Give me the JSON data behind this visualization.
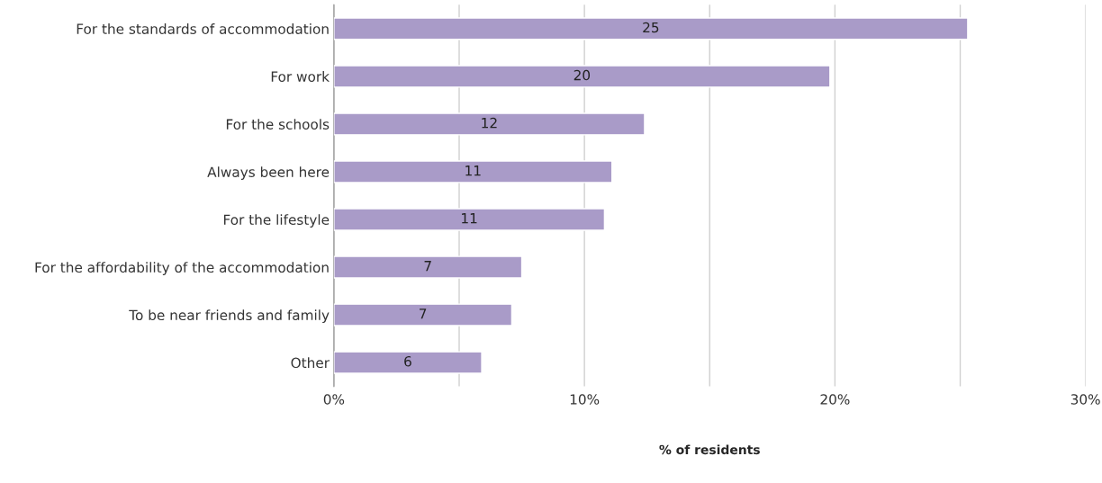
{
  "chart_data": {
    "type": "bar",
    "orientation": "horizontal",
    "xlabel": "% of residents",
    "categories": [
      "For the standards of accommodation",
      "For work",
      "For the schools",
      "Always been here",
      "For the lifestyle",
      "For the affordability of the accommodation",
      "To be near friends and family",
      "Other"
    ],
    "values": [
      25.3,
      19.8,
      12.4,
      11.1,
      10.8,
      7.5,
      7.1,
      5.9
    ],
    "value_labels": [
      "25",
      "20",
      "12",
      "11",
      "11",
      "7",
      "7",
      "6"
    ],
    "color": "#a99bc8",
    "xlim": [
      0,
      30
    ],
    "xticks": [
      {
        "value": 0,
        "label": "0%"
      },
      {
        "value": 5,
        "label": null
      },
      {
        "value": 10,
        "label": "10%"
      },
      {
        "value": 15,
        "label": null
      },
      {
        "value": 20,
        "label": "20%"
      },
      {
        "value": 25,
        "label": null
      },
      {
        "value": 30,
        "label": "30%"
      }
    ],
    "grid": "x",
    "legend": false
  }
}
